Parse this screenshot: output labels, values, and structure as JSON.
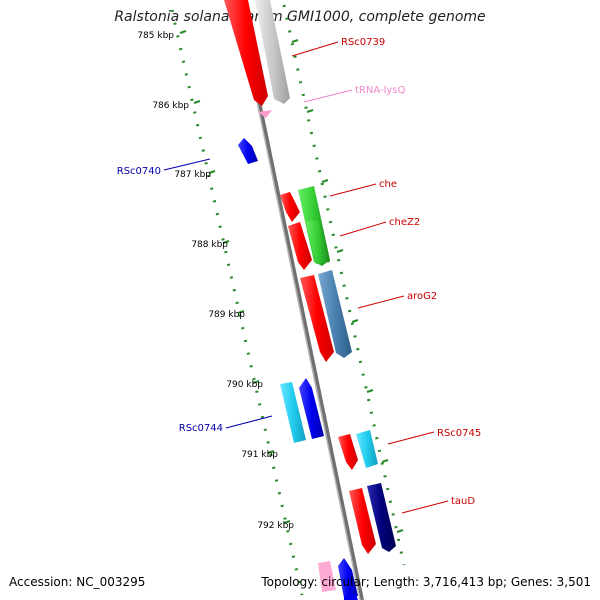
{
  "header": {
    "title": "Ralstonia solanacearum GMI1000, complete genome"
  },
  "footer": {
    "accession": "Accession: NC_003295",
    "topology": "Topology: circular; Length: 3,716,413 bp; Genes: 3,501"
  },
  "scale": {
    "ticks": [
      "785 kbp",
      "786 kbp",
      "787 kbp",
      "788 kbp",
      "789 kbp",
      "790 kbp",
      "791 kbp",
      "792 kbp"
    ]
  },
  "colors": {
    "backbone": "#8c8c8c",
    "dots": "#2a8a2a",
    "forward_label": "#cc0000",
    "reverse_label": "#0000aa",
    "trna_label": "#ee88cc",
    "red": "#ff0000",
    "gray": "#c8c8c8",
    "green": "#33cc33",
    "steelblue": "#4a80b0",
    "cyan": "#22ccee",
    "blue": "#0000ee",
    "navy": "#00007a",
    "pink": "#ff99cc"
  },
  "genes": [
    {
      "id": "RSc0739",
      "label": "RSc0739",
      "color": "red",
      "strand": "reverse"
    },
    {
      "id": "tRNA-lysQ",
      "label": "tRNA-lysQ",
      "color": "gray",
      "strand": "reverse"
    },
    {
      "id": "RSc0740",
      "label": "RSc0740",
      "color": "blue",
      "strand": "forward"
    },
    {
      "id": "che",
      "label": "che",
      "color": "red",
      "strand": "reverse"
    },
    {
      "id": "cheZ2",
      "label": "cheZ2",
      "color": "green",
      "strand": "reverse"
    },
    {
      "id": "aroG2",
      "label": "aroG2",
      "color": "steelblue",
      "strand": "reverse"
    },
    {
      "id": "RSc0744",
      "label": "RSc0744",
      "color": "cyan",
      "strand": "forward"
    },
    {
      "id": "RSc0745",
      "label": "RSc0745",
      "color": "red",
      "strand": "reverse"
    },
    {
      "id": "tauD",
      "label": "tauD",
      "color": "navy",
      "strand": "reverse"
    }
  ]
}
